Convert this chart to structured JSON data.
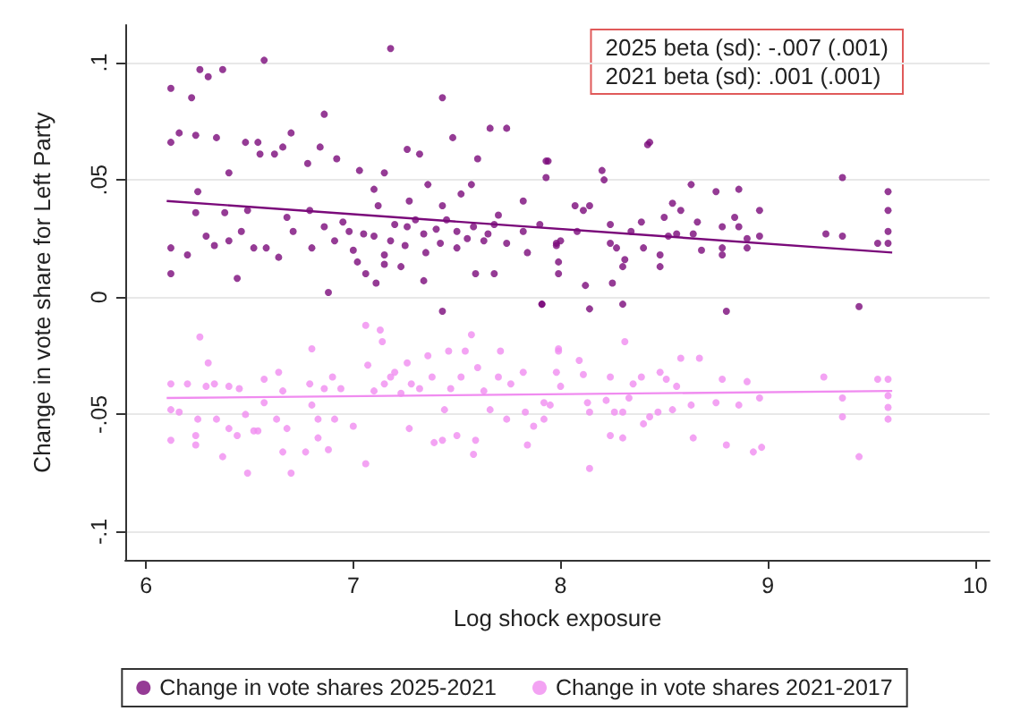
{
  "chart_data": {
    "type": "scatter",
    "xlabel": "Log shock exposure",
    "ylabel": "Change in vote share for Left Party",
    "xlim": [
      5.9,
      10.07
    ],
    "ylim": [
      -0.112,
      0.116
    ],
    "xticks": [
      6,
      7,
      8,
      9,
      10
    ],
    "yticks": [
      {
        "value": -0.1,
        "label": "-.1"
      },
      {
        "value": -0.05,
        "label": "-.05"
      },
      {
        "value": 0,
        "label": "0"
      },
      {
        "value": 0.05,
        "label": ".05"
      },
      {
        "value": 0.1,
        "label": ".1"
      }
    ],
    "grid": "y",
    "legend": "bottom",
    "annotations": [
      "2025 beta (sd): -.007 (.001)",
      "2021 beta (sd): .001 (.001)"
    ],
    "series": [
      {
        "name": "Change in vote shares 2025-2021",
        "color": "#7a0a7a",
        "marker": "circle",
        "x": [
          6.12,
          6.26,
          6.3,
          6.37,
          6.57,
          7.18,
          6.22,
          7.43,
          6.86,
          6.12,
          6.16,
          6.24,
          6.34,
          6.48,
          6.54,
          6.7,
          7.66,
          7.74,
          7.48,
          6.25,
          6.4,
          6.55,
          6.62,
          6.66,
          6.78,
          6.84,
          6.92,
          7.03,
          7.26,
          7.32,
          7.6,
          7.94,
          6.12,
          6.12,
          6.2,
          6.24,
          6.29,
          6.33,
          6.38,
          6.4,
          6.44,
          6.46,
          6.49,
          6.52,
          6.58,
          6.64,
          6.68,
          6.71,
          6.79,
          6.8,
          6.88,
          6.86,
          6.91,
          6.98,
          7.02,
          7.06,
          7.11,
          7.15,
          7.23,
          7.34,
          7.43,
          7.1,
          7.18,
          7.26,
          7.34,
          7.42,
          7.5,
          7.58,
          7.63,
          7.68,
          7.74,
          7.82,
          7.84,
          7.9,
          7.98,
          7.59,
          7.68,
          7.91,
          7.12,
          7.27,
          7.43,
          7.52,
          7.82,
          7.1,
          7.15,
          7.36,
          7.57,
          6.95,
          7.05,
          7.2,
          7.3,
          7.4,
          7.45,
          7.55,
          7.65,
          7.7,
          7.0,
          7.15,
          7.25,
          7.35,
          7.5,
          8.42,
          8.43,
          7.93,
          7.93,
          8.2,
          8.21,
          8.63,
          8.75,
          8.86,
          9.36,
          9.58,
          9.58,
          9.58,
          9.58,
          9.53,
          8.54,
          8.58,
          8.5,
          8.66,
          8.78,
          8.84,
          8.96,
          8.96,
          8.9,
          8.86,
          9.28,
          9.36,
          8.64,
          8.56,
          8.52,
          8.39,
          8.34,
          8.24,
          8.14,
          8.07,
          8.11,
          8.08,
          8.0,
          7.98,
          8.24,
          8.27,
          8.4,
          8.48,
          8.48,
          8.31,
          8.3,
          8.25,
          7.99,
          7.99,
          8.12,
          8.14,
          8.3,
          8.68,
          8.78,
          8.78,
          8.9,
          8.8,
          9.44,
          7.91
        ],
        "values": [
          0.089,
          0.097,
          0.094,
          0.097,
          0.101,
          0.106,
          0.085,
          0.085,
          0.078,
          0.066,
          0.07,
          0.069,
          0.068,
          0.066,
          0.066,
          0.07,
          0.072,
          0.072,
          0.068,
          0.045,
          0.053,
          0.061,
          0.061,
          0.064,
          0.057,
          0.064,
          0.059,
          0.054,
          0.063,
          0.061,
          0.059,
          0.058,
          0.021,
          0.01,
          0.018,
          0.036,
          0.026,
          0.022,
          0.036,
          0.024,
          0.008,
          0.028,
          0.037,
          0.021,
          0.021,
          0.017,
          0.034,
          0.028,
          0.037,
          0.021,
          0.002,
          0.03,
          0.024,
          0.028,
          0.015,
          0.01,
          0.006,
          0.014,
          0.013,
          0.007,
          -0.006,
          0.026,
          0.024,
          0.03,
          0.027,
          0.023,
          0.028,
          0.03,
          0.024,
          0.031,
          0.023,
          0.028,
          0.019,
          0.031,
          0.023,
          0.01,
          0.01,
          -0.003,
          0.039,
          0.041,
          0.039,
          0.044,
          0.041,
          0.046,
          0.053,
          0.048,
          0.048,
          0.032,
          0.027,
          0.031,
          0.033,
          0.029,
          0.033,
          0.025,
          0.027,
          0.035,
          0.02,
          0.018,
          0.022,
          0.019,
          0.021,
          0.065,
          0.066,
          0.058,
          0.051,
          0.054,
          0.05,
          0.048,
          0.045,
          0.046,
          0.051,
          0.045,
          0.037,
          0.028,
          0.023,
          0.023,
          0.04,
          0.037,
          0.034,
          0.032,
          0.03,
          0.034,
          0.037,
          0.026,
          0.025,
          0.03,
          0.027,
          0.026,
          0.027,
          0.027,
          0.026,
          0.032,
          0.028,
          0.031,
          0.039,
          0.039,
          0.037,
          0.028,
          0.024,
          0.022,
          0.023,
          0.021,
          0.021,
          0.018,
          0.013,
          0.016,
          0.013,
          0.006,
          0.015,
          0.01,
          0.005,
          -0.005,
          -0.003,
          0.02,
          0.021,
          0.018,
          0.021,
          -0.006,
          -0.004,
          -0.003
        ]
      },
      {
        "name": "Change in vote shares 2021-2017",
        "color": "#f08cf0",
        "marker": "circle",
        "x": [
          6.26,
          6.3,
          6.12,
          6.12,
          6.16,
          6.12,
          6.2,
          6.24,
          6.24,
          6.25,
          6.29,
          6.33,
          6.34,
          6.37,
          6.4,
          6.4,
          6.44,
          6.45,
          6.48,
          6.49,
          6.52,
          6.54,
          6.57,
          6.57,
          6.64,
          6.63,
          6.66,
          6.68,
          6.66,
          6.7,
          6.77,
          6.8,
          6.79,
          6.8,
          6.83,
          6.83,
          6.88,
          6.9,
          6.91,
          6.86,
          6.94,
          7.0,
          7.06,
          7.06,
          7.13,
          7.14,
          7.07,
          7.1,
          7.15,
          7.18,
          7.2,
          7.23,
          7.26,
          7.28,
          7.27,
          7.32,
          7.36,
          7.38,
          7.39,
          7.43,
          7.44,
          7.46,
          7.47,
          7.5,
          7.52,
          7.54,
          7.57,
          7.58,
          7.59,
          7.6,
          7.63,
          7.66,
          7.7,
          7.71,
          7.74,
          7.76,
          7.82,
          7.83,
          7.84,
          7.87,
          7.95,
          7.99,
          8.0,
          7.99,
          8.09,
          8.31,
          8.58,
          8.67,
          7.98,
          8.11,
          8.24,
          8.35,
          8.39,
          8.48,
          8.51,
          8.56,
          8.78,
          8.9,
          9.27,
          9.53,
          9.58,
          9.58,
          9.58,
          9.58,
          9.36,
          9.36,
          9.44,
          8.96,
          8.86,
          8.75,
          8.63,
          8.54,
          8.47,
          8.43,
          8.4,
          8.33,
          8.3,
          8.26,
          8.22,
          8.13,
          8.14,
          8.24,
          8.3,
          8.14,
          8.64,
          8.8,
          8.93,
          8.97,
          7.92,
          7.92
        ],
        "values": [
          -0.017,
          -0.028,
          -0.037,
          -0.048,
          -0.049,
          -0.061,
          -0.037,
          -0.059,
          -0.063,
          -0.052,
          -0.038,
          -0.037,
          -0.052,
          -0.068,
          -0.038,
          -0.056,
          -0.059,
          -0.039,
          -0.05,
          -0.075,
          -0.057,
          -0.057,
          -0.035,
          -0.045,
          -0.032,
          -0.052,
          -0.04,
          -0.056,
          -0.066,
          -0.075,
          -0.066,
          -0.022,
          -0.037,
          -0.046,
          -0.052,
          -0.06,
          -0.065,
          -0.034,
          -0.052,
          -0.039,
          -0.039,
          -0.055,
          -0.012,
          -0.071,
          -0.014,
          -0.019,
          -0.029,
          -0.04,
          -0.037,
          -0.034,
          -0.032,
          -0.041,
          -0.028,
          -0.037,
          -0.056,
          -0.039,
          -0.025,
          -0.034,
          -0.062,
          -0.061,
          -0.048,
          -0.023,
          -0.039,
          -0.059,
          -0.034,
          -0.023,
          -0.016,
          -0.067,
          -0.061,
          -0.03,
          -0.04,
          -0.048,
          -0.034,
          -0.023,
          -0.052,
          -0.037,
          -0.032,
          -0.049,
          -0.063,
          -0.055,
          -0.046,
          -0.023,
          -0.038,
          -0.022,
          -0.027,
          -0.019,
          -0.026,
          -0.026,
          -0.032,
          -0.033,
          -0.034,
          -0.037,
          -0.034,
          -0.032,
          -0.035,
          -0.038,
          -0.035,
          -0.036,
          -0.034,
          -0.035,
          -0.035,
          -0.042,
          -0.047,
          -0.052,
          -0.043,
          -0.051,
          -0.068,
          -0.043,
          -0.046,
          -0.045,
          -0.046,
          -0.048,
          -0.049,
          -0.051,
          -0.054,
          -0.043,
          -0.049,
          -0.049,
          -0.044,
          -0.045,
          -0.049,
          -0.059,
          -0.06,
          -0.073,
          -0.06,
          -0.063,
          -0.066,
          -0.064,
          -0.052,
          -0.045
        ]
      },
      {
        "type": "line",
        "color": "#7a0a7a",
        "line_style": "solid",
        "x": [
          6.1,
          9.6
        ],
        "values": [
          0.041,
          0.019
        ]
      },
      {
        "type": "line",
        "color": "#f08cf0",
        "line_style": "solid",
        "x": [
          6.1,
          9.6
        ],
        "values": [
          -0.043,
          -0.04
        ]
      }
    ]
  }
}
